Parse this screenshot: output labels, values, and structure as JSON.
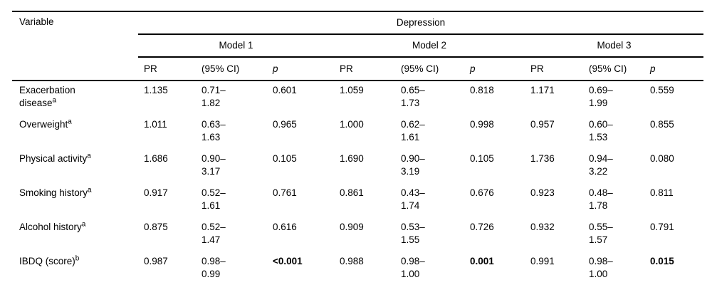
{
  "table": {
    "column_headers": {
      "variable": "Variable",
      "group": "Depression",
      "models": [
        "Model 1",
        "Model 2",
        "Model 3"
      ],
      "sub": [
        "PR",
        "(95% CI)",
        "p"
      ]
    },
    "rows": [
      {
        "variable": "Exacerbation\ndisease",
        "variable_sup": "a",
        "models": [
          {
            "pr": "1.135",
            "ci": "0.71–\n1.82",
            "p": "0.601",
            "p_bold": false
          },
          {
            "pr": "1.059",
            "ci": "0.65–\n1.73",
            "p": "0.818",
            "p_bold": false
          },
          {
            "pr": "1.171",
            "ci": "0.69–\n1.99",
            "p": "0.559",
            "p_bold": false
          }
        ]
      },
      {
        "variable": "Overweight",
        "variable_sup": "a",
        "models": [
          {
            "pr": "1.011",
            "ci": "0.63–\n1.63",
            "p": "0.965",
            "p_bold": false
          },
          {
            "pr": "1.000",
            "ci": "0.62–\n1.61",
            "p": "0.998",
            "p_bold": false
          },
          {
            "pr": "0.957",
            "ci": "0.60–\n1.53",
            "p": "0.855",
            "p_bold": false
          }
        ]
      },
      {
        "variable": "Physical activity",
        "variable_sup": "a",
        "models": [
          {
            "pr": "1.686",
            "ci": "0.90–\n3.17",
            "p": "0.105",
            "p_bold": false
          },
          {
            "pr": "1.690",
            "ci": "0.90–\n3.19",
            "p": "0.105",
            "p_bold": false
          },
          {
            "pr": "1.736",
            "ci": "0.94–\n3.22",
            "p": "0.080",
            "p_bold": false
          }
        ]
      },
      {
        "variable": "Smoking history",
        "variable_sup": "a",
        "models": [
          {
            "pr": "0.917",
            "ci": "0.52–\n1.61",
            "p": "0.761",
            "p_bold": false
          },
          {
            "pr": "0.861",
            "ci": "0.43–\n1.74",
            "p": "0.676",
            "p_bold": false
          },
          {
            "pr": "0.923",
            "ci": "0.48–\n1.78",
            "p": "0.811",
            "p_bold": false
          }
        ]
      },
      {
        "variable": "Alcohol history",
        "variable_sup": "a",
        "models": [
          {
            "pr": "0.875",
            "ci": "0.52–\n1.47",
            "p": "0.616",
            "p_bold": false
          },
          {
            "pr": "0.909",
            "ci": "0.53–\n1.55",
            "p": "0.726",
            "p_bold": false
          },
          {
            "pr": "0.932",
            "ci": "0.55–\n1.57",
            "p": "0.791",
            "p_bold": false
          }
        ]
      },
      {
        "variable": "IBDQ (score)",
        "variable_sup": "b",
        "models": [
          {
            "pr": "0.987",
            "ci": "0.98–\n0.99",
            "p": "<0.001",
            "p_bold": true
          },
          {
            "pr": "0.988",
            "ci": "0.98–\n1.00",
            "p": "0.001",
            "p_bold": true
          },
          {
            "pr": "0.991",
            "ci": "0.98–\n1.00",
            "p": "0.015",
            "p_bold": true
          }
        ]
      }
    ]
  }
}
